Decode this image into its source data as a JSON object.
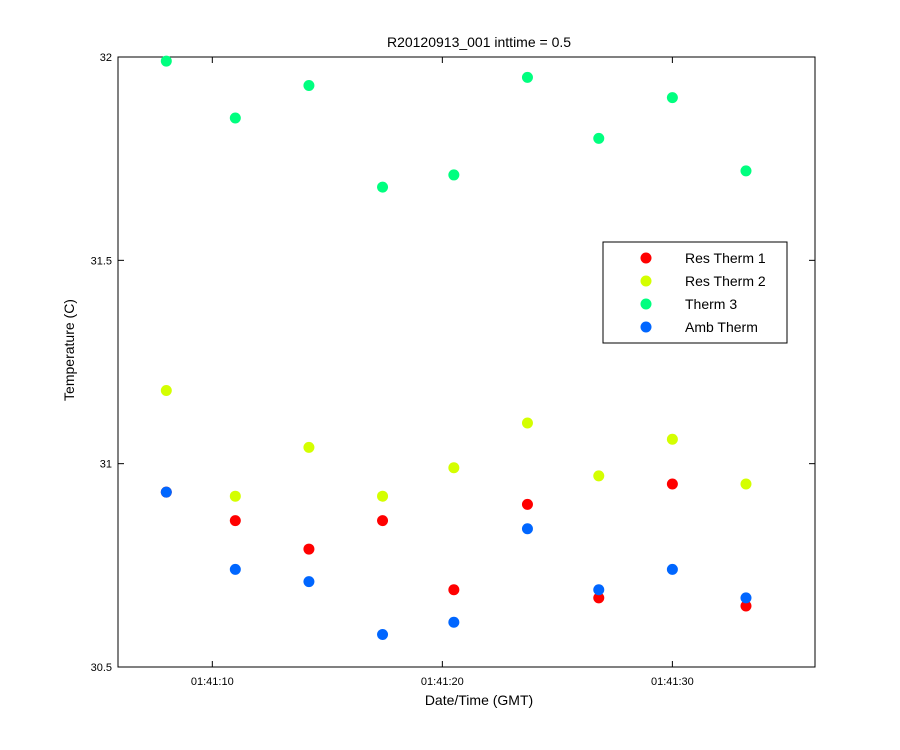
{
  "chart_data": {
    "type": "scatter",
    "title": "R20120913_001 inttime = 0.5",
    "xlabel": "Date/Time (GMT)",
    "ylabel": "Temperature (C)",
    "x_unit": "time (GMT)",
    "xlim": [
      "01:41:05.9",
      "01:41:36.2"
    ],
    "ylim": [
      30.5,
      32
    ],
    "xticks": [
      "01:41:10",
      "01:41:20",
      "01:41:30"
    ],
    "yticks": [
      "30.5",
      "31",
      "31.5",
      "32"
    ],
    "grid": false,
    "legend_position": "right, upper-middle",
    "x": [
      "01:41:08.0",
      "01:41:11.0",
      "01:41:14.2",
      "01:41:17.4",
      "01:41:20.5",
      "01:41:23.7",
      "01:41:26.8",
      "01:41:30.0",
      "01:41:33.2"
    ],
    "series": [
      {
        "name": "Res Therm 1",
        "color": "#ff0000",
        "values": [
          30.93,
          30.86,
          30.79,
          30.86,
          30.69,
          30.9,
          30.67,
          30.95,
          30.65
        ]
      },
      {
        "name": "Res Therm 2",
        "color": "#d4ff00",
        "values": [
          31.18,
          30.92,
          31.04,
          30.92,
          30.99,
          31.1,
          30.97,
          31.06,
          30.95
        ]
      },
      {
        "name": "Therm 3",
        "color": "#00ff7f",
        "values": [
          31.99,
          31.85,
          31.93,
          31.68,
          31.71,
          31.95,
          31.8,
          31.9,
          31.72
        ]
      },
      {
        "name": "Amb Therm",
        "color": "#0066ff",
        "values": [
          30.93,
          30.74,
          30.71,
          30.58,
          30.61,
          30.84,
          30.69,
          30.74,
          30.67
        ]
      }
    ]
  }
}
